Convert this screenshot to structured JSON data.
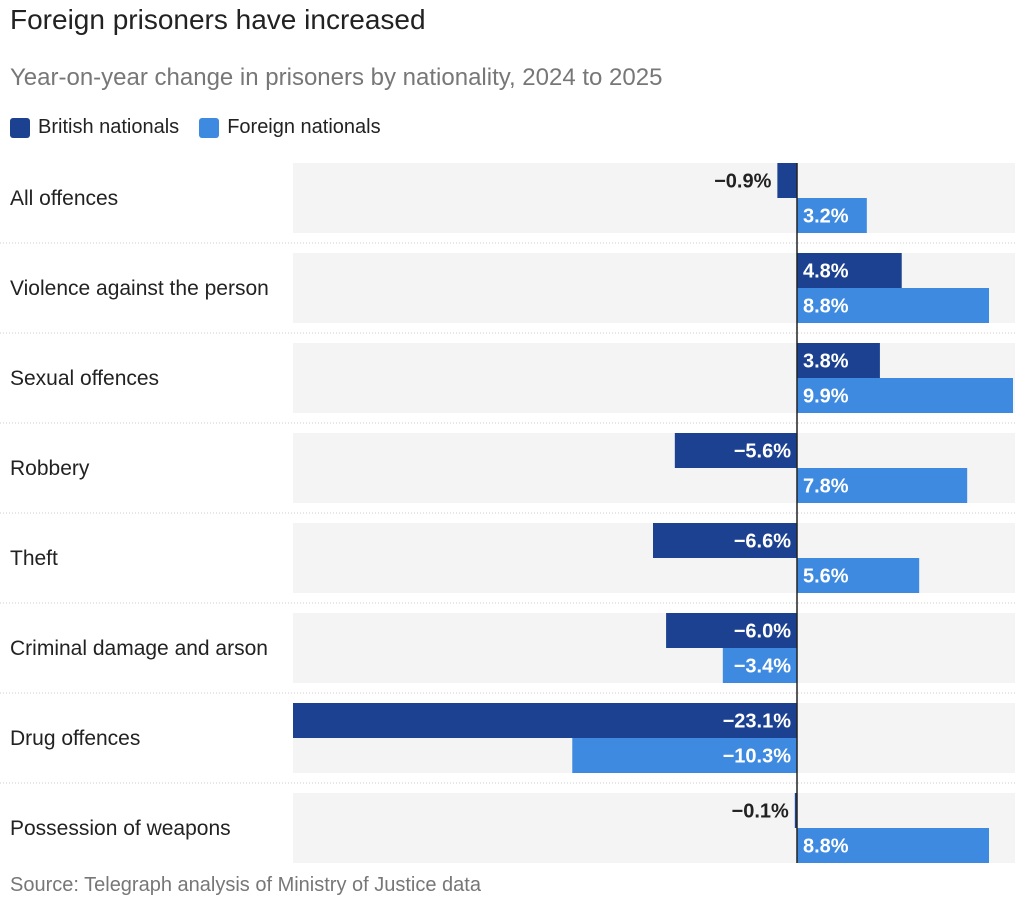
{
  "title": "Foreign prisoners have increased",
  "subtitle": "Year-on-year change in prisoners by nationality, 2024 to 2025",
  "legend": [
    {
      "label": "British nationals",
      "color": "#1c4190"
    },
    {
      "label": "Foreign nationals",
      "color": "#3e8ae0"
    }
  ],
  "source": "Source: Telegraph analysis of Ministry of Justice data",
  "chart_data": {
    "type": "bar",
    "orientation": "horizontal",
    "title": "Foreign prisoners have increased",
    "subtitle": "Year-on-year change in prisoners by nationality, 2024 to 2025",
    "categories": [
      "All offences",
      "Violence against the person",
      "Sexual offences",
      "Robbery",
      "Theft",
      "Criminal damage and arson",
      "Drug offences",
      "Possession of weapons"
    ],
    "series": [
      {
        "name": "British nationals",
        "color": "#1c4190",
        "values": [
          -0.9,
          4.8,
          3.8,
          -5.6,
          -6.6,
          -6.0,
          -23.1,
          -0.1
        ]
      },
      {
        "name": "Foreign nationals",
        "color": "#3e8ae0",
        "values": [
          3.2,
          8.8,
          9.9,
          7.8,
          5.6,
          -3.4,
          -10.3,
          8.8
        ]
      }
    ],
    "value_suffix": "%",
    "xlim": [
      -23.1,
      9.9
    ],
    "legend_position": "top-left",
    "grid": false
  }
}
